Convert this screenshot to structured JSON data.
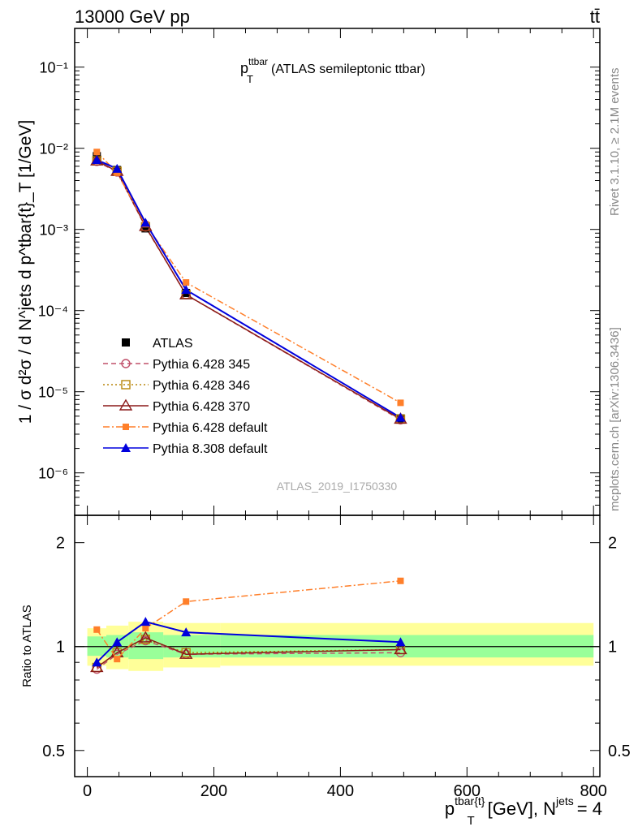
{
  "header": {
    "left_label": "13000 GeV pp",
    "right_label": "tt̄"
  },
  "side_labels": {
    "rivet": "Rivet 3.1.10, ≥ 2.1M events",
    "mcplots": "mcplots.cern.ch [arXiv:1306.3436]"
  },
  "chart_data": [
    {
      "type": "line",
      "panel": "main",
      "title_main": "p",
      "title_sup": "ttbar",
      "title_sub": "T",
      "title_suffix": "(ATLAS semileptonic ttbar)",
      "ylabel": "1 / σ d²σ / d N^jets d p^tbar{t}_T [1/GeV]",
      "y_scale": "log",
      "ylim": [
        3e-07,
        0.3
      ],
      "xlim": [
        -20,
        810
      ],
      "ytick_labels": [
        "10⁻⁶",
        "10⁻⁵",
        "10⁻⁴",
        "10⁻³",
        "10⁻²",
        "10⁻¹"
      ],
      "watermark": "ATLAS_2019_I1750330",
      "legend_position": "lower-left",
      "x": [
        15,
        47,
        92,
        156,
        495
      ],
      "data": {
        "name": "ATLAS",
        "values": [
          0.008,
          0.0054,
          0.00103,
          0.000165,
          4.7e-06
        ]
      },
      "series": [
        {
          "name": "Pythia 6.428 345",
          "color": "#c0506a",
          "style": "dashed",
          "marker": "open-circle",
          "values": [
            0.0069,
            0.0051,
            0.00107,
            0.000157,
            4.5e-06
          ]
        },
        {
          "name": "Pythia 6.428 346",
          "color": "#b8860b",
          "style": "dotted",
          "marker": "open-square",
          "values": [
            0.007,
            0.0052,
            0.00108,
            0.000158,
            4.6e-06
          ]
        },
        {
          "name": "Pythia 6.428 370",
          "color": "#8b1a1a",
          "style": "solid",
          "marker": "open-triangle",
          "values": [
            0.007,
            0.0052,
            0.00109,
            0.000157,
            4.6e-06
          ]
        },
        {
          "name": "Pythia 6.428 default",
          "color": "#ff7f2a",
          "style": "dashdot",
          "marker": "filled-square",
          "values": [
            0.009,
            0.005,
            0.00116,
            0.000222,
            7.3e-06
          ]
        },
        {
          "name": "Pythia 8.308 default",
          "color": "#0000dd",
          "style": "solid",
          "marker": "filled-triangle",
          "values": [
            0.0072,
            0.0056,
            0.00121,
            0.00018,
            4.8e-06
          ]
        }
      ]
    },
    {
      "type": "line",
      "panel": "ratio",
      "ylabel": "Ratio to ATLAS",
      "xlabel_main": "p",
      "xlabel_sup": "tbar{t}",
      "xlabel_sub": "T",
      "xlabel_suffix": "[GeV], N",
      "xlabel_sup2": "jets",
      "xlabel_end": "= 4",
      "y_scale": "log",
      "ylim": [
        0.42,
        2.4
      ],
      "xlim": [
        -20,
        810
      ],
      "xtick_labels": [
        "0",
        "200",
        "400",
        "600",
        "800"
      ],
      "ytick_labels": [
        "0.5",
        "1",
        "2"
      ],
      "bins": [
        [
          0,
          30
        ],
        [
          30,
          65
        ],
        [
          65,
          120
        ],
        [
          120,
          210
        ],
        [
          210,
          800
        ]
      ],
      "band_inner": [
        [
          0.94,
          1.07
        ],
        [
          0.93,
          1.08
        ],
        [
          0.92,
          1.1
        ],
        [
          0.93,
          1.08
        ],
        [
          0.93,
          1.08
        ]
      ],
      "band_outer": [
        [
          0.88,
          1.13
        ],
        [
          0.86,
          1.15
        ],
        [
          0.85,
          1.18
        ],
        [
          0.87,
          1.17
        ],
        [
          0.88,
          1.17
        ]
      ],
      "x": [
        15,
        47,
        92,
        156,
        495
      ],
      "series": [
        {
          "name": "Pythia 6.428 345",
          "values": [
            0.86,
            0.95,
            1.04,
            0.95,
            0.96
          ]
        },
        {
          "name": "Pythia 6.428 346",
          "values": [
            0.87,
            0.96,
            1.05,
            0.96,
            0.98
          ]
        },
        {
          "name": "Pythia 6.428 370",
          "values": [
            0.87,
            0.96,
            1.06,
            0.95,
            0.98
          ]
        },
        {
          "name": "Pythia 6.428 default",
          "values": [
            1.12,
            0.92,
            1.13,
            1.35,
            1.55
          ]
        },
        {
          "name": "Pythia 8.308 default",
          "values": [
            0.9,
            1.03,
            1.18,
            1.1,
            1.03
          ]
        }
      ]
    }
  ]
}
